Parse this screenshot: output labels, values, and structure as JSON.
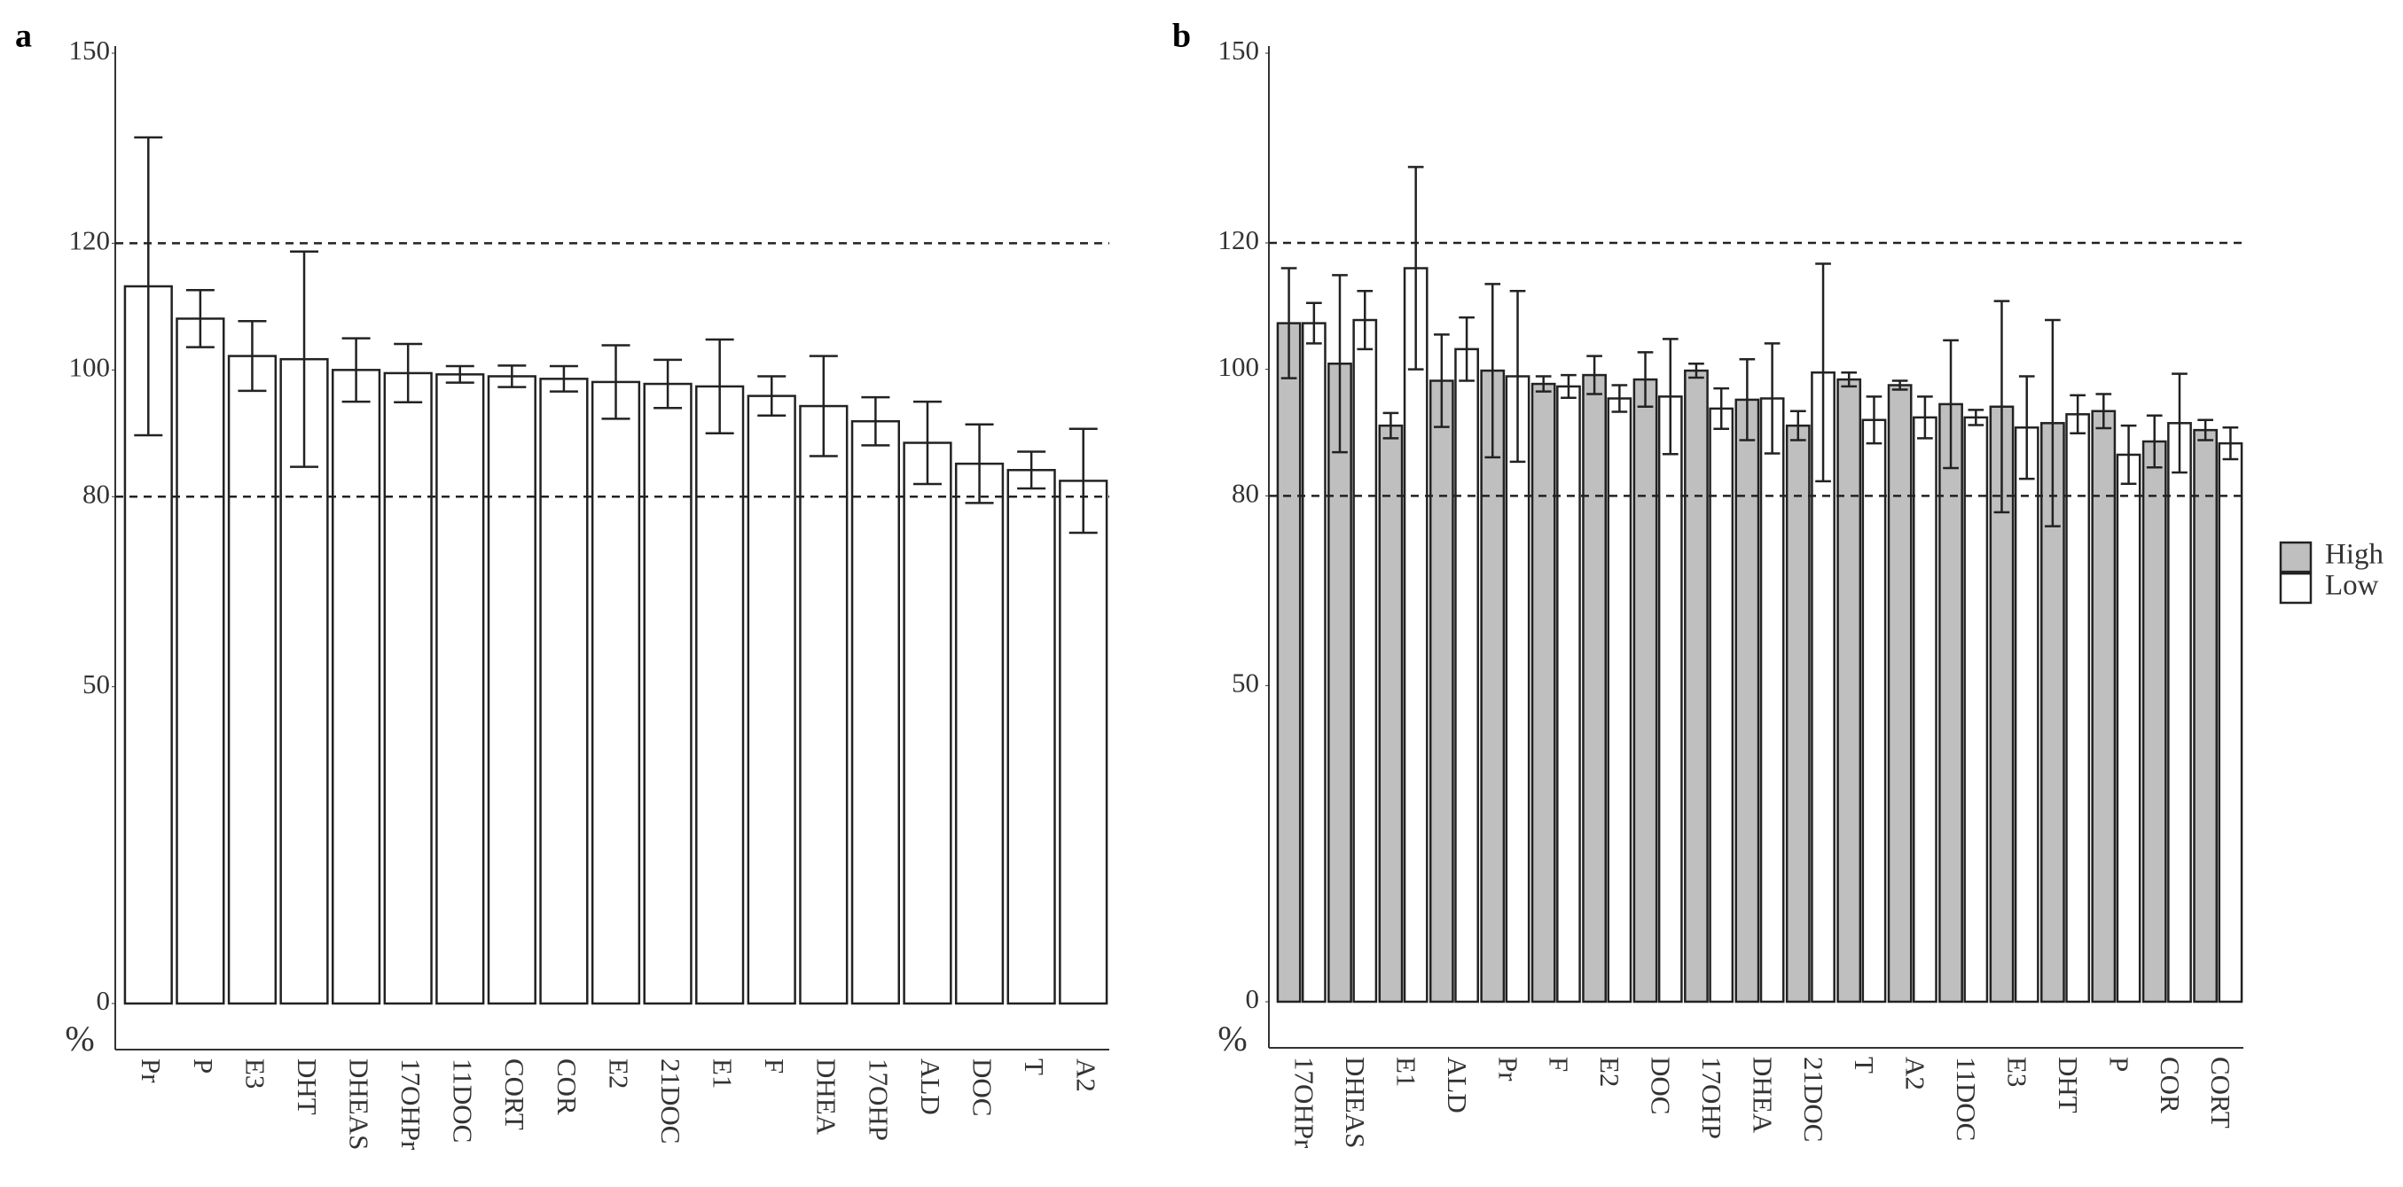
{
  "chart_data": [
    {
      "type": "bar",
      "panel_label": "a",
      "ylabel": "%",
      "categories": [
        "Pr",
        "P",
        "E3",
        "DHT",
        "DHEAS",
        "17OHPr",
        "11DOC",
        "CORT",
        "COR",
        "E2",
        "21DOC",
        "E1",
        "F",
        "DHEA",
        "17OHP",
        "ALD",
        "DOC",
        "T",
        "A2"
      ],
      "series": [
        {
          "color": "#ffffff",
          "values": [
            113.2,
            108.1,
            102.2,
            101.7,
            100,
            99.5,
            99.3,
            99,
            98.6,
            98.1,
            97.8,
            97.4,
            95.9,
            94.3,
            91.9,
            88.5,
            85.2,
            84.2,
            82.5
          ],
          "errors": [
            23.5,
            4.5,
            5.5,
            17,
            5,
            4.6,
            1.3,
            1.7,
            2,
            5.8,
            3.8,
            7.4,
            3.1,
            7.9,
            3.8,
            6.5,
            6.2,
            2.9,
            8.2
          ]
        }
      ],
      "ylim": [
        0,
        150
      ],
      "yticks": [
        0,
        50,
        80,
        100,
        120,
        150
      ],
      "reference_lines": [
        80,
        120
      ],
      "grid": false
    },
    {
      "type": "bar",
      "panel_label": "b",
      "ylabel": "%",
      "categories": [
        "17OHPr",
        "DHEAS",
        "E1",
        "ALD",
        "Pr",
        "F",
        "E2",
        "DOC",
        "17OHP",
        "DHEA",
        "21DOC",
        "T",
        "A2",
        "11DOC",
        "E3",
        "DHT",
        "P",
        "COR",
        "CORT"
      ],
      "series": [
        {
          "name": "High",
          "color": "#bfbfbf",
          "values": [
            107.3,
            100.9,
            91.1,
            98.2,
            99.8,
            97.7,
            99.1,
            98.4,
            99.8,
            95.2,
            91.1,
            98.4,
            97.5,
            94.5,
            94.1,
            91.5,
            93.4,
            88.6,
            90.4
          ],
          "errors": [
            8.7,
            14,
            2,
            7.3,
            13.7,
            1.2,
            3,
            4.3,
            1.1,
            6.4,
            2.3,
            1.1,
            0.7,
            10.1,
            16.7,
            16.3,
            2.7,
            4.1,
            1.6
          ]
        },
        {
          "name": "Low",
          "color": "#ffffff",
          "values": [
            107.3,
            107.8,
            116,
            103.2,
            98.9,
            97.3,
            95.4,
            95.7,
            93.8,
            95.4,
            99.5,
            92,
            92.4,
            92.4,
            90.8,
            92.9,
            86.5,
            91.5,
            88.3
          ],
          "errors": [
            3.2,
            4.6,
            16,
            5,
            13.5,
            1.8,
            2.1,
            9.1,
            3.2,
            8.7,
            17.2,
            3.7,
            3.3,
            1.2,
            8.1,
            3,
            4.6,
            7.8,
            2.5
          ]
        }
      ],
      "ylim": [
        0,
        150
      ],
      "yticks": [
        0,
        50,
        80,
        100,
        120,
        150
      ],
      "reference_lines": [
        80,
        120
      ],
      "grid": false,
      "legend": "right"
    }
  ]
}
